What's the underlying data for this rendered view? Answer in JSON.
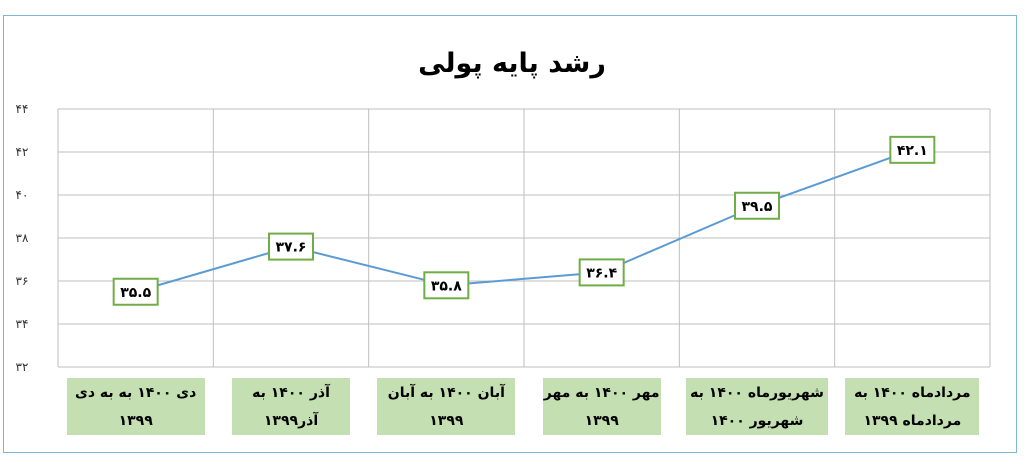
{
  "chart_data": {
    "type": "line",
    "title": "رشد پایه پولی",
    "xlabel": "",
    "ylabel": "",
    "ylim": [
      32,
      44
    ],
    "yticks": [
      "۳۲",
      "۳۴",
      "۳۶",
      "۳۸",
      "۴۰",
      "۴۲",
      "۴۴"
    ],
    "grid": true,
    "legend": "none",
    "categories": [
      [
        "مردادماه ۱۴۰۰ به",
        "مردادماه ۱۳۹۹"
      ],
      [
        "شهریورماه ۱۴۰۰ به",
        "شهریور ۱۴۰۰"
      ],
      [
        "مهر ۱۴۰۰ به مهر",
        "۱۳۹۹"
      ],
      [
        "آبان ۱۴۰۰ به آبان",
        "۱۳۹۹"
      ],
      [
        "آذر ۱۴۰۰ به",
        "آذر۱۳۹۹"
      ],
      [
        "دی ۱۴۰۰ به به دی",
        "۱۳۹۹"
      ]
    ],
    "series": [
      {
        "values": [
          42.1,
          39.5,
          36.4,
          35.8,
          37.6,
          35.5
        ],
        "labels": [
          "۴۲.۱",
          "۳۹.۵",
          "۳۶.۴",
          "۳۵.۸",
          "۳۷.۶",
          "۳۵.۵"
        ]
      }
    ],
    "colors": {
      "line": "#5b9bd5",
      "label_border": "#70ad47",
      "category_fill": "#c4dfb1",
      "grid": "#bfbfbf",
      "frame": "#7eb6d9"
    }
  }
}
